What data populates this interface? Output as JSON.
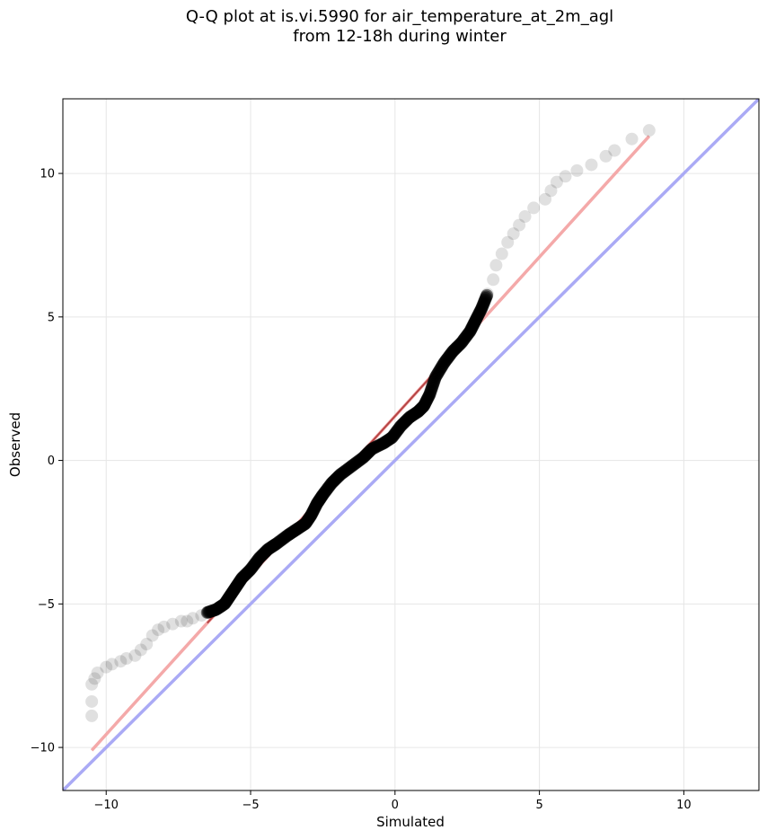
{
  "chart_data": {
    "type": "scatter",
    "title_line1": "Q-Q plot at is.vi.5990 for air_temperature_at_2m_agl",
    "title_line2": "from 12-18h during winter",
    "xlabel": "Simulated",
    "ylabel": "Observed",
    "xlim": [
      -11.5,
      12.6
    ],
    "ylim": [
      -11.5,
      12.6
    ],
    "xticks": [
      -10,
      -5,
      0,
      5,
      10
    ],
    "yticks": [
      -10,
      -5,
      0,
      5,
      10
    ],
    "xtick_labels": [
      "−10",
      "−5",
      "0",
      "5",
      "10"
    ],
    "ytick_labels": [
      "−10",
      "−5",
      "0",
      "5",
      "10"
    ],
    "grid": true,
    "reference_line": {
      "x": [
        -11.5,
        12.6
      ],
      "y": [
        -11.5,
        12.6
      ],
      "color": "#aaaaf5"
    },
    "fit_line": {
      "x": [
        -10.5,
        8.8
      ],
      "y": [
        -10.1,
        11.3
      ],
      "color": "#f4a9a9",
      "inner_color": "#8b0000",
      "inner_x": [
        -6.5,
        2.9
      ]
    },
    "marker_color": "#000000",
    "quantiles": [
      [
        -10.5,
        -8.9
      ],
      [
        -10.5,
        -8.4
      ],
      [
        -10.5,
        -7.8
      ],
      [
        -10.4,
        -7.6
      ],
      [
        -10.3,
        -7.4
      ],
      [
        -10.0,
        -7.2
      ],
      [
        -9.8,
        -7.1
      ],
      [
        -9.5,
        -7.0
      ],
      [
        -9.3,
        -6.9
      ],
      [
        -9.0,
        -6.8
      ],
      [
        -8.8,
        -6.6
      ],
      [
        -8.6,
        -6.4
      ],
      [
        -8.4,
        -6.1
      ],
      [
        -8.2,
        -5.9
      ],
      [
        -8.0,
        -5.8
      ],
      [
        -7.7,
        -5.7
      ],
      [
        -7.4,
        -5.6
      ],
      [
        -7.2,
        -5.6
      ],
      [
        -7.0,
        -5.5
      ],
      [
        -6.7,
        -5.4
      ],
      [
        -6.5,
        -5.3
      ],
      [
        -6.2,
        -5.2
      ],
      [
        -5.9,
        -5.0
      ],
      [
        -5.7,
        -4.7
      ],
      [
        -5.5,
        -4.4
      ],
      [
        -5.3,
        -4.1
      ],
      [
        -5.0,
        -3.8
      ],
      [
        -4.7,
        -3.4
      ],
      [
        -4.4,
        -3.1
      ],
      [
        -4.1,
        -2.9
      ],
      [
        -3.7,
        -2.6
      ],
      [
        -3.4,
        -2.4
      ],
      [
        -3.1,
        -2.2
      ],
      [
        -2.9,
        -1.9
      ],
      [
        -2.7,
        -1.5
      ],
      [
        -2.5,
        -1.2
      ],
      [
        -2.2,
        -0.8
      ],
      [
        -1.9,
        -0.5
      ],
      [
        -1.5,
        -0.2
      ],
      [
        -1.1,
        0.1
      ],
      [
        -0.8,
        0.4
      ],
      [
        -0.4,
        0.6
      ],
      [
        -0.1,
        0.8
      ],
      [
        0.2,
        1.2
      ],
      [
        0.5,
        1.5
      ],
      [
        0.8,
        1.7
      ],
      [
        1.0,
        1.9
      ],
      [
        1.2,
        2.3
      ],
      [
        1.4,
        2.9
      ],
      [
        1.7,
        3.4
      ],
      [
        2.0,
        3.8
      ],
      [
        2.3,
        4.1
      ],
      [
        2.6,
        4.5
      ],
      [
        2.8,
        4.9
      ],
      [
        3.0,
        5.3
      ],
      [
        3.2,
        5.8
      ],
      [
        3.4,
        6.3
      ],
      [
        3.5,
        6.8
      ],
      [
        3.7,
        7.2
      ],
      [
        3.9,
        7.6
      ],
      [
        4.1,
        7.9
      ],
      [
        4.3,
        8.2
      ],
      [
        4.5,
        8.5
      ],
      [
        4.8,
        8.8
      ],
      [
        5.2,
        9.1
      ],
      [
        5.4,
        9.4
      ],
      [
        5.6,
        9.7
      ],
      [
        5.9,
        9.9
      ],
      [
        6.3,
        10.1
      ],
      [
        6.8,
        10.3
      ],
      [
        7.3,
        10.6
      ],
      [
        7.6,
        10.8
      ],
      [
        8.2,
        11.2
      ],
      [
        8.8,
        11.5
      ]
    ]
  }
}
